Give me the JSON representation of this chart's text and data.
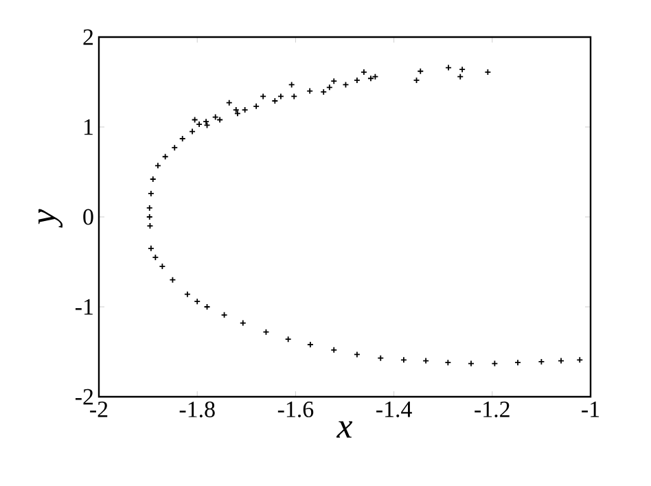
{
  "chart_data": {
    "type": "scatter",
    "xlabel": "x",
    "ylabel": "y",
    "xlim": [
      -2,
      -1
    ],
    "ylim": [
      -2,
      2
    ],
    "xticks": [
      -2,
      -1.8,
      -1.6,
      -1.4,
      -1.2,
      -1
    ],
    "yticks": [
      -2,
      -1,
      0,
      1,
      2
    ],
    "grid": false,
    "marker": "cross",
    "series": [
      {
        "color": "#000000",
        "x": [
          -1.718,
          -1.754,
          -1.78,
          -1.81,
          -1.83,
          -1.846,
          -1.865,
          -1.88,
          -1.89,
          -1.894,
          -1.897,
          -1.897,
          -1.896,
          -1.894,
          -1.885,
          -1.871,
          -1.85,
          -1.82,
          -1.8,
          -1.78,
          -1.745,
          -1.707,
          -1.66,
          -1.615,
          -1.57,
          -1.522,
          -1.475,
          -1.427,
          -1.38,
          -1.335,
          -1.29,
          -1.243,
          -1.195,
          -1.148,
          -1.1,
          -1.06,
          -1.022
        ],
        "values": [
          1.15,
          1.08,
          1.02,
          0.95,
          0.87,
          0.77,
          0.67,
          0.57,
          0.42,
          0.26,
          0.1,
          0,
          -0.1,
          -0.35,
          -0.45,
          -0.55,
          -0.7,
          -0.86,
          -0.94,
          -1.0,
          -1.09,
          -1.18,
          -1.28,
          -1.36,
          -1.42,
          -1.48,
          -1.53,
          -1.57,
          -1.59,
          -1.6,
          -1.62,
          -1.63,
          -1.63,
          -1.62,
          -1.61,
          -1.6,
          -1.59
        ]
      },
      {
        "color": "#000000",
        "x": [
          -1.805,
          -1.796,
          -1.782,
          -1.763,
          -1.735,
          -1.721,
          -1.703,
          -1.68,
          -1.666,
          -1.642,
          -1.63,
          -1.608,
          -1.603,
          -1.571,
          -1.543,
          -1.531,
          -1.522,
          -1.498,
          -1.475,
          -1.461,
          -1.447,
          -1.438,
          -1.354,
          -1.346,
          -1.289,
          -1.265,
          -1.261,
          -1.209
        ],
        "values": [
          1.08,
          1.03,
          1.06,
          1.11,
          1.27,
          1.19,
          1.19,
          1.23,
          1.34,
          1.29,
          1.34,
          1.47,
          1.34,
          1.4,
          1.39,
          1.44,
          1.51,
          1.47,
          1.52,
          1.61,
          1.54,
          1.56,
          1.52,
          1.62,
          1.66,
          1.56,
          1.64,
          1.61
        ]
      }
    ]
  }
}
